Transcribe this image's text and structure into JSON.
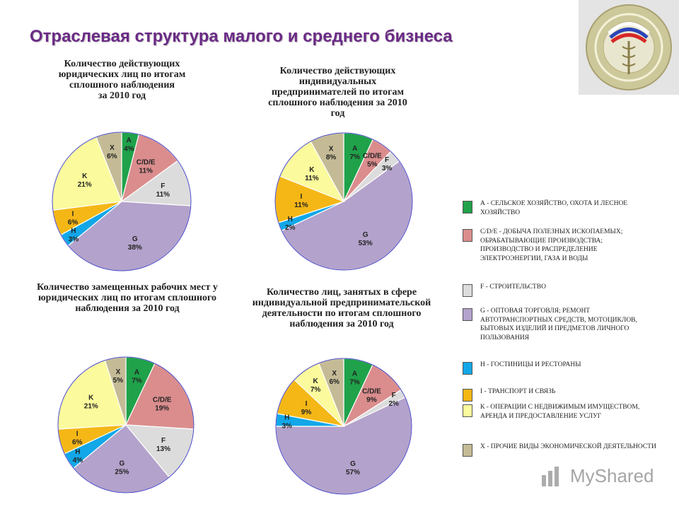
{
  "page": {
    "title": "Отраслевая структура малого и среднего бизнеса"
  },
  "colors": {
    "A": "#1fa24a",
    "CDE": "#db8d8d",
    "F": "#dcdcdc",
    "G": "#b3a2cb",
    "H": "#12a7e8",
    "I": "#f4b716",
    "K": "#fbfa9c",
    "X": "#c4bb96"
  },
  "emblem": {
    "icon": "emblem-seal-icon"
  },
  "watermark": {
    "text": "MyShared",
    "icon": "myshared-logo-icon"
  },
  "legend": {
    "items": [
      {
        "key": "A",
        "text": "А - СЕЛЬСКОЕ ХОЗЯЙСТВО, ОХОТА И ЛЕСНОЕ ХОЗЯЙСТВО"
      },
      {
        "key": "CDE",
        "text": "C/D/E - ДОБЫЧА ПОЛЕЗНЫХ ИСКОПАЕМЫХ; ОБРАБАТЫВАЮЩИЕ ПРОИЗВОДСТВА; ПРОИЗВОДСТВО И РАСПРЕДЕЛЕНИЕ ЭЛЕКТРОЭНЕРГИИ, ГАЗА И ВОДЫ"
      },
      {
        "key": "F",
        "text": "F - СТРОИТЕЛЬСТВО"
      },
      {
        "key": "G",
        "text": "G - ОПТОВАЯ ТОРГОВЛЯ; РЕМОНТ АВТОТРАНСПОРТНЫХ СРЕДСТВ, МОТОЦИКЛОВ, БЫТОВЫХ ИЗДЕЛИЙ И ПРЕДМЕТОВ ЛИЧНОГО ПОЛЬЗОВАНИЯ"
      },
      {
        "key": "H",
        "text": "Н - ГОСТИНИЦЫ И РЕСТОРАНЫ"
      },
      {
        "key": "I",
        "text": "I - ТРАНСПОРТ И СВЯЗЬ"
      },
      {
        "key": "K",
        "text": "К - ОПЕРАЦИИ С НЕДВИЖИМЫМ ИМУЩЕСТВОМ, АРЕНДА И ПРЕДОСТАВЛЕНИЕ УСЛУГ"
      },
      {
        "key": "X",
        "text": "Х - ПРОЧИЕ ВИДЫ ЭКОНОМИЧЕСКОЙ ДЕЯТЕЛЬНОСТИ"
      }
    ]
  },
  "chart_data": [
    {
      "type": "pie",
      "title": "Количество действующих юридических лиц по итогам сплошного наблюдения за 2010 год",
      "title_lines": [
        "Количество действующих",
        "юридических лиц по итогам",
        "сплошного наблюдения",
        "за 2010 год"
      ],
      "slices": [
        {
          "key": "A",
          "label": "A",
          "value": 4,
          "value_label": "4%"
        },
        {
          "key": "CDE",
          "label": "C/D/E",
          "value": 11,
          "value_label": "11%"
        },
        {
          "key": "F",
          "label": "F",
          "value": 11,
          "value_label": "11%"
        },
        {
          "key": "G",
          "label": "G",
          "value": 38,
          "value_label": "38%"
        },
        {
          "key": "H",
          "label": "H",
          "value": 3,
          "value_label": "3%"
        },
        {
          "key": "I",
          "label": "I",
          "value": 6,
          "value_label": "6%"
        },
        {
          "key": "K",
          "label": "K",
          "value": 21,
          "value_label": "21%"
        },
        {
          "key": "X",
          "label": "X",
          "value": 6,
          "value_label": "6%"
        }
      ]
    },
    {
      "type": "pie",
      "title": "Количество действующих индивидуальных предпринимателей по итогам сплошного наблюдения за 2010 год",
      "title_lines": [
        "Количество действующих",
        "индивидуальных",
        "предпринимателей по итогам",
        "сплошного наблюдения за 2010",
        "год"
      ],
      "slices": [
        {
          "key": "A",
          "label": "A",
          "value": 7,
          "value_label": "7%"
        },
        {
          "key": "CDE",
          "label": "C/D/E",
          "value": 5,
          "value_label": "5%"
        },
        {
          "key": "F",
          "label": "F",
          "value": 3,
          "value_label": "3%"
        },
        {
          "key": "G",
          "label": "G",
          "value": 53,
          "value_label": "53%"
        },
        {
          "key": "H",
          "label": "H",
          "value": 2,
          "value_label": "2%"
        },
        {
          "key": "I",
          "label": "I",
          "value": 11,
          "value_label": "11%"
        },
        {
          "key": "K",
          "label": "K",
          "value": 11,
          "value_label": "11%"
        },
        {
          "key": "X",
          "label": "X",
          "value": 8,
          "value_label": "8%"
        }
      ]
    },
    {
      "type": "pie",
      "title": "Количество замещенных рабочих мест у юридических лиц по итогам сплошного наблюдения за 2010 год",
      "title_lines": [
        "Количество замещенных рабочих мест у",
        "юридических лиц по итогам сплошного",
        "наблюдения за 2010 год"
      ],
      "slices": [
        {
          "key": "A",
          "label": "A",
          "value": 7,
          "value_label": "7%"
        },
        {
          "key": "CDE",
          "label": "C/D/E",
          "value": 19,
          "value_label": "19%"
        },
        {
          "key": "F",
          "label": "F",
          "value": 13,
          "value_label": "13%"
        },
        {
          "key": "G",
          "label": "G",
          "value": 25,
          "value_label": "25%"
        },
        {
          "key": "H",
          "label": "H",
          "value": 4,
          "value_label": "4%"
        },
        {
          "key": "I",
          "label": "I",
          "value": 6,
          "value_label": "6%"
        },
        {
          "key": "K",
          "label": "K",
          "value": 21,
          "value_label": "21%"
        },
        {
          "key": "X",
          "label": "X",
          "value": 5,
          "value_label": "5%"
        }
      ]
    },
    {
      "type": "pie",
      "title": "Количество лиц, занятых в сфере индивидуальной предпринимательской деятельности по итогам сплошного наблюдения за 2010 год",
      "title_lines": [
        "Количество лиц, занятых в сфере",
        "индивидуальной предпринимательской",
        "деятельности по итогам сплошного",
        "наблюдения за 2010 год"
      ],
      "slices": [
        {
          "key": "A",
          "label": "A",
          "value": 7,
          "value_label": "7%"
        },
        {
          "key": "CDE",
          "label": "C/D/E",
          "value": 9,
          "value_label": "9%"
        },
        {
          "key": "F",
          "label": "F",
          "value": 2,
          "value_label": "2%"
        },
        {
          "key": "G",
          "label": "G",
          "value": 57,
          "value_label": "57%"
        },
        {
          "key": "H",
          "label": "H",
          "value": 3,
          "value_label": "3%"
        },
        {
          "key": "I",
          "label": "I",
          "value": 9,
          "value_label": "9%"
        },
        {
          "key": "K",
          "label": "K",
          "value": 7,
          "value_label": "7%"
        },
        {
          "key": "X",
          "label": "X",
          "value": 6,
          "value_label": "6%"
        }
      ]
    }
  ]
}
